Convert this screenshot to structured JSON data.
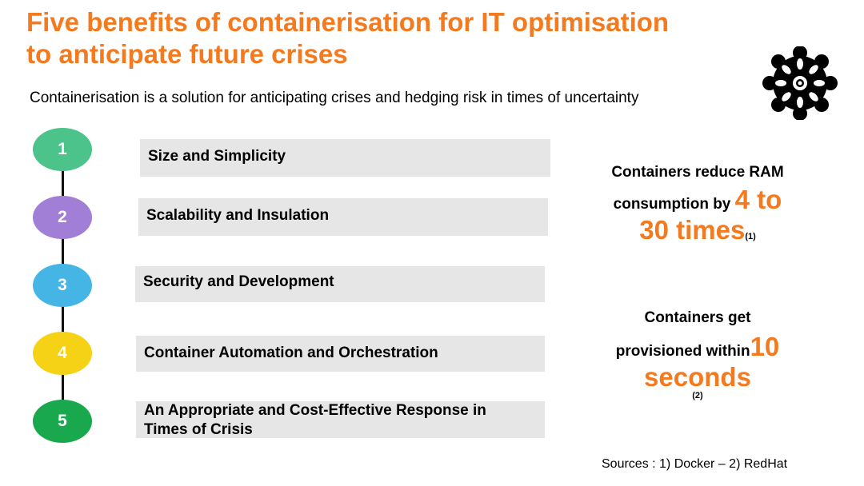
{
  "slide": {
    "title_line1": "Five benefits of containerisation for IT optimisation",
    "title_line2": "to anticipate future crises",
    "subtitle": "Containerisation is a solution for anticipating crises and hedging risk in times of uncertainty",
    "logo_icon": "container-hub-icon"
  },
  "steps": [
    {
      "number": "1",
      "label": "Size and Simplicity",
      "color": "#4cc38a"
    },
    {
      "number": "2",
      "label": "Scalability and Insulation",
      "color": "#a27fd6"
    },
    {
      "number": "3",
      "label": "Security and Development",
      "color": "#45b5e6"
    },
    {
      "number": "4",
      "label": "Container Automation and Orchestration",
      "color": "#f5d215"
    },
    {
      "number": "5",
      "label_line1": "An Appropriate and Cost-Effective Response in",
      "label_line2": "Times of Crisis",
      "color": "#1aa84f"
    }
  ],
  "stats": {
    "ram": {
      "line1": "Containers reduce RAM",
      "line2_prefix": "consumption by ",
      "highlight_a": "4 to",
      "highlight_b": "30 times",
      "ref": "(1)"
    },
    "provision": {
      "line1": "Containers get",
      "line2_prefix": "provisioned within",
      "highlight_a": "10",
      "highlight_b": "seconds",
      "ref": "(2)"
    }
  },
  "sources": "Sources : 1) Docker  – 2) RedHat",
  "accent_color": "#f47a20"
}
